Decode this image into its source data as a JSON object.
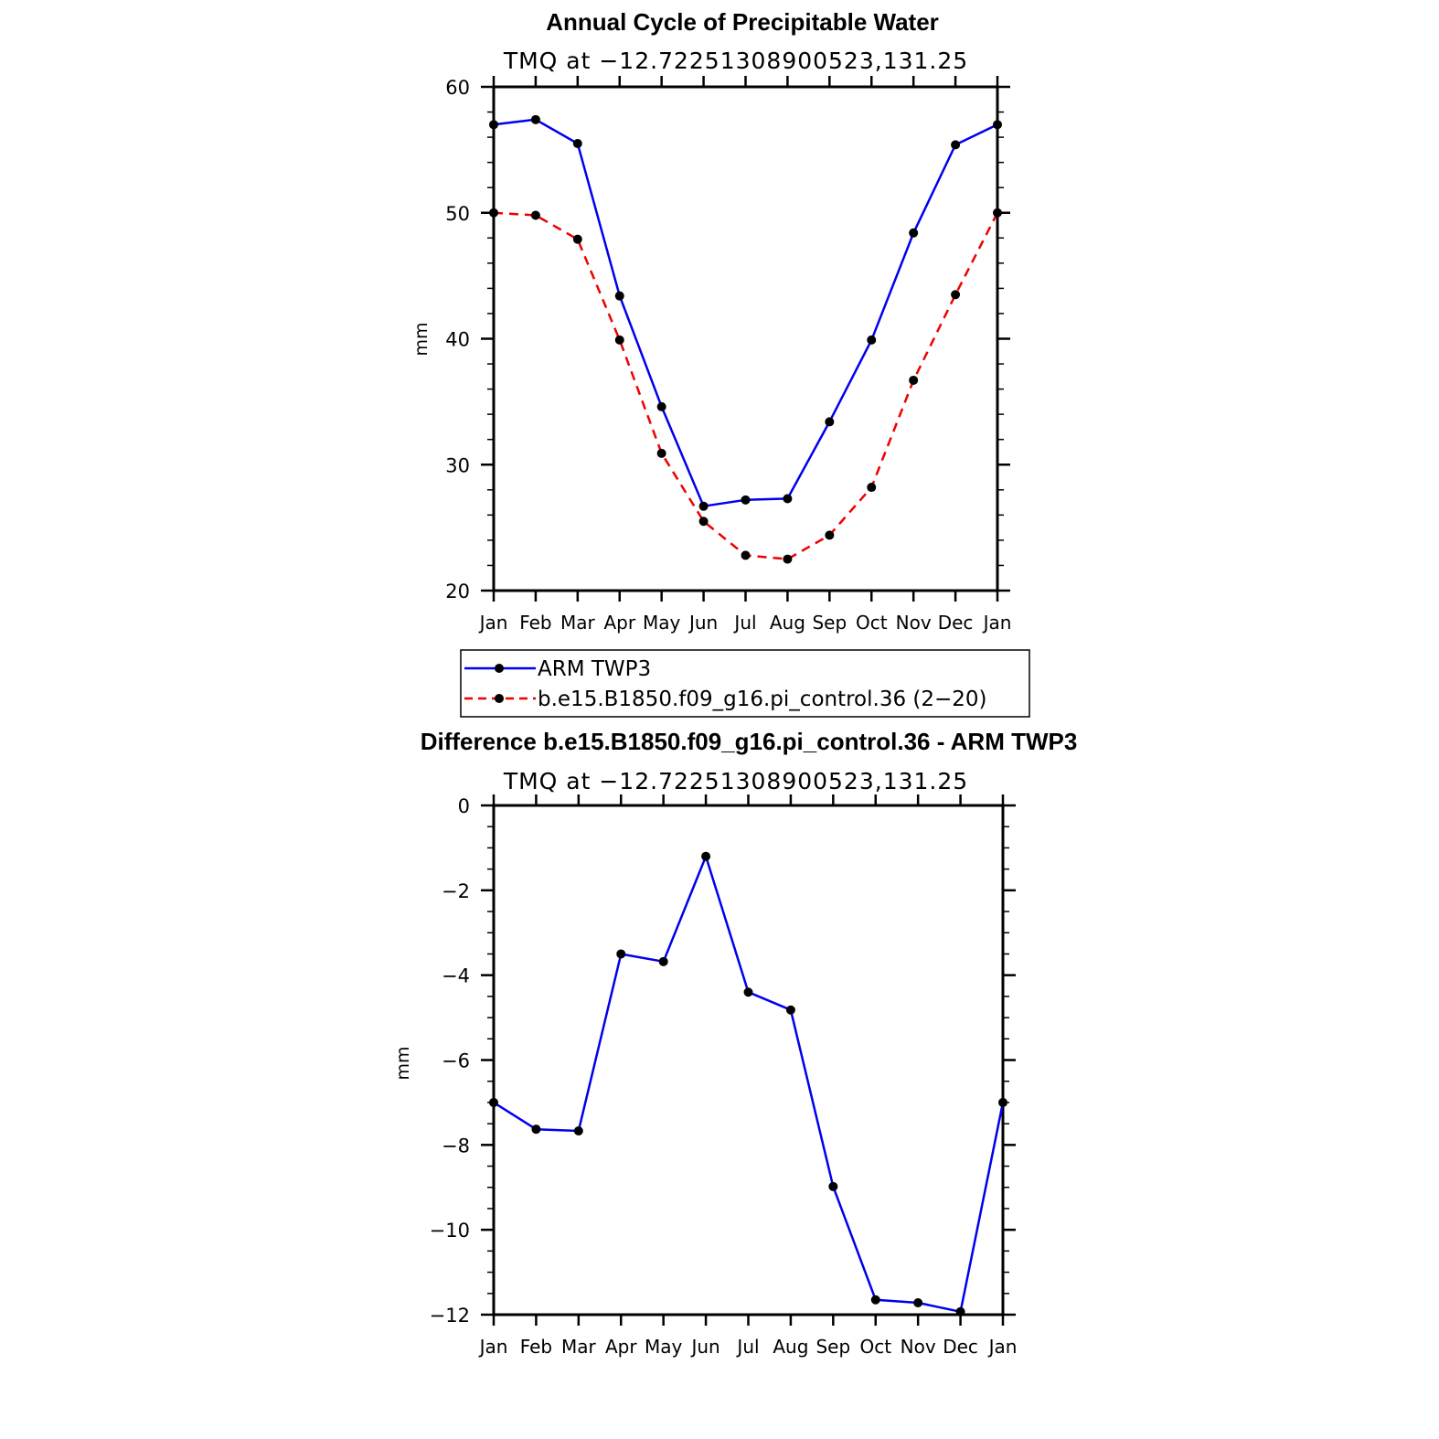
{
  "colors": {
    "obs": "#0000ee",
    "model": "#ee0000",
    "marker": "#000000",
    "axis": "#000000"
  },
  "chart_data": [
    {
      "type": "line",
      "title": "Annual Cycle of Precipitable Water",
      "subtitle": "TMQ at −12.72251308900523,131.25",
      "xlabel": "",
      "ylabel": "mm",
      "categories": [
        "Jan",
        "Feb",
        "Mar",
        "Apr",
        "May",
        "Jun",
        "Jul",
        "Aug",
        "Sep",
        "Oct",
        "Nov",
        "Dec",
        "Jan"
      ],
      "ylim": [
        20,
        60
      ],
      "yticks": [
        "20",
        "30",
        "40",
        "50",
        "60"
      ],
      "series": [
        {
          "name": "ARM TWP3",
          "style": "solid",
          "color": "#0000ee",
          "values": [
            57.0,
            57.4,
            55.5,
            43.4,
            34.6,
            26.7,
            27.2,
            27.3,
            33.4,
            39.9,
            48.4,
            55.4,
            57.0
          ]
        },
        {
          "name": "b.e15.B1850.f09_g16.pi_control.36 (2−20)",
          "style": "dashed",
          "color": "#ee0000",
          "values": [
            50.0,
            49.8,
            47.9,
            39.9,
            30.9,
            25.5,
            22.8,
            22.5,
            24.4,
            28.2,
            36.7,
            43.5,
            50.0
          ]
        }
      ],
      "legend": "below"
    },
    {
      "type": "line",
      "title": "Difference b.e15.B1850.f09_g16.pi_control.36 - ARM TWP3",
      "subtitle": "TMQ at −12.72251308900523,131.25",
      "xlabel": "",
      "ylabel": "mm",
      "categories": [
        "Jan",
        "Feb",
        "Mar",
        "Apr",
        "May",
        "Jun",
        "Jul",
        "Aug",
        "Sep",
        "Oct",
        "Nov",
        "Dec",
        "Jan"
      ],
      "ylim": [
        -12,
        0
      ],
      "yticks": [
        "−12",
        "−10",
        "−8",
        "−6",
        "−4",
        "−2",
        "0"
      ],
      "series": [
        {
          "name": "Difference",
          "style": "solid",
          "color": "#0000ee",
          "values": [
            -7.0,
            -7.63,
            -7.67,
            -3.5,
            -3.68,
            -1.2,
            -4.4,
            -4.82,
            -8.98,
            -11.65,
            -11.72,
            -11.93,
            -7.0
          ]
        }
      ]
    }
  ]
}
